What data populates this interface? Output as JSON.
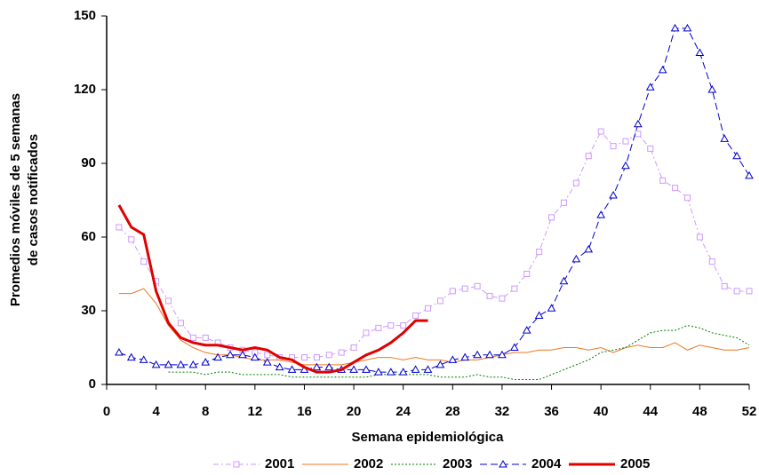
{
  "chart_data": {
    "type": "line",
    "xlabel": "Semana epidemiológica",
    "ylabel": [
      "Promedios móviles de 5 semanas",
      "de casos notificados"
    ],
    "x": [
      1,
      2,
      3,
      4,
      5,
      6,
      7,
      8,
      9,
      10,
      11,
      12,
      13,
      14,
      15,
      16,
      17,
      18,
      19,
      20,
      21,
      22,
      23,
      24,
      25,
      26,
      27,
      28,
      29,
      30,
      31,
      32,
      33,
      34,
      35,
      36,
      37,
      38,
      39,
      40,
      41,
      42,
      43,
      44,
      45,
      46,
      47,
      48,
      49,
      50,
      51,
      52
    ],
    "xlim": [
      0,
      52
    ],
    "xticks": [
      0,
      4,
      8,
      12,
      16,
      20,
      24,
      28,
      32,
      36,
      40,
      44,
      48,
      52
    ],
    "ylim": [
      0,
      150
    ],
    "yticks": [
      0,
      30,
      60,
      90,
      120,
      150
    ],
    "legend": "bottom",
    "series": [
      {
        "name": "2001",
        "color": "#cc99ff",
        "dash": "dashdot",
        "marker": "square",
        "width": 1,
        "values": [
          64,
          59,
          50,
          42,
          34,
          25,
          19,
          19,
          17,
          15,
          14,
          13,
          12,
          11,
          11,
          11,
          11,
          12,
          13,
          15,
          21,
          23,
          24,
          24,
          28,
          31,
          34,
          38,
          39,
          40,
          36,
          35,
          39,
          45,
          54,
          68,
          74,
          82,
          93,
          103,
          97,
          99,
          102,
          96,
          83,
          80,
          76,
          60,
          50,
          40,
          38,
          38
        ]
      },
      {
        "name": "2002",
        "color": "#ee7722",
        "dash": "solid",
        "marker": "none",
        "width": 1,
        "values": [
          37,
          37,
          39,
          33,
          24,
          18,
          15,
          13,
          12,
          12,
          11,
          10,
          10,
          10,
          9,
          8,
          8,
          8,
          8,
          9,
          10,
          11,
          11,
          10,
          11,
          10,
          10,
          9,
          10,
          10,
          11,
          12,
          13,
          13,
          14,
          14,
          15,
          15,
          14,
          15,
          13,
          15,
          16,
          15,
          15,
          17,
          14,
          16,
          15,
          14,
          14,
          15
        ]
      },
      {
        "name": "2003",
        "color": "#008000",
        "dash": "dot",
        "marker": "none",
        "width": 1,
        "values": [
          null,
          null,
          null,
          null,
          5,
          5,
          5,
          4,
          5,
          5,
          4,
          4,
          4,
          4,
          3,
          3,
          3,
          3,
          3,
          3,
          3,
          4,
          4,
          4,
          4,
          4,
          3,
          3,
          3,
          4,
          3,
          3,
          2,
          2,
          2,
          4,
          6,
          8,
          10,
          13,
          14,
          15,
          18,
          21,
          22,
          22,
          24,
          23,
          21,
          20,
          19,
          16
        ]
      },
      {
        "name": "2004",
        "color": "#0000cc",
        "dash": "dash",
        "marker": "triangle",
        "width": 1,
        "values": [
          13,
          11,
          10,
          8,
          8,
          8,
          8,
          9,
          11,
          12,
          12,
          11,
          9,
          7,
          6,
          6,
          7,
          7,
          6,
          6,
          6,
          5,
          5,
          5,
          6,
          6,
          8,
          10,
          11,
          12,
          12,
          12,
          15,
          22,
          28,
          31,
          42,
          51,
          55,
          69,
          77,
          89,
          106,
          121,
          128,
          145,
          145,
          135,
          120,
          100,
          93,
          85
        ]
      },
      {
        "name": "2005",
        "color": "#e00000",
        "dash": "solid",
        "marker": "none",
        "width": 3,
        "values": [
          73,
          64,
          61,
          38,
          25,
          19,
          17,
          16,
          16,
          15,
          14,
          15,
          14,
          11,
          10,
          7,
          5,
          5,
          6,
          9,
          12,
          14,
          17,
          21,
          26,
          26,
          null,
          null,
          null,
          null,
          null,
          null,
          null,
          null,
          null,
          null,
          null,
          null,
          null,
          null,
          null,
          null,
          null,
          null,
          null,
          null,
          null,
          null,
          null,
          null,
          null,
          null
        ]
      }
    ]
  }
}
